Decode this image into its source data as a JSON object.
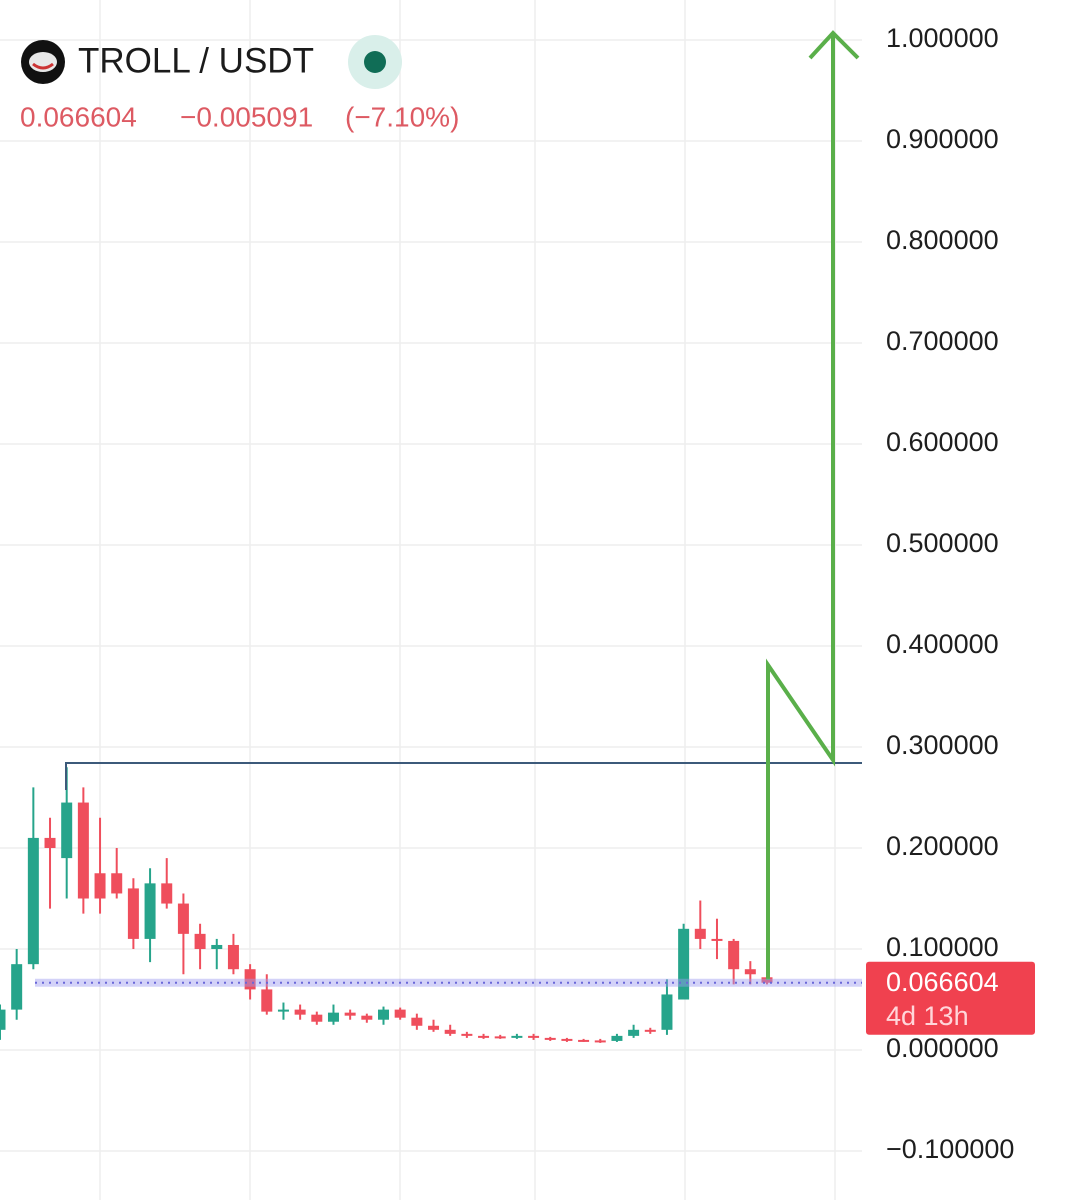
{
  "header": {
    "symbol": "TROLL / USDT",
    "price": "0.066604",
    "change": "−0.005091",
    "change_pct": "(−7.10%)"
  },
  "chart_data": {
    "type": "candlestick",
    "categories": [
      null,
      null,
      null,
      null,
      null,
      null,
      null,
      null,
      null,
      null,
      null,
      null,
      null,
      null,
      null,
      null,
      null,
      null,
      null,
      null,
      null,
      null,
      null,
      null,
      null,
      null,
      null,
      null,
      null,
      null,
      null,
      null,
      null,
      null,
      null,
      null,
      null,
      null,
      null,
      null,
      null,
      null,
      null,
      null,
      null,
      null,
      null
    ],
    "open": [
      0.02,
      0.04,
      0.085,
      0.21,
      0.19,
      0.245,
      0.175,
      0.175,
      0.16,
      0.11,
      0.165,
      0.145,
      0.115,
      0.1,
      0.104,
      0.08,
      0.06,
      0.038,
      0.04,
      0.035,
      0.028,
      0.037,
      0.034,
      0.03,
      0.04,
      0.032,
      0.024,
      0.02,
      0.016,
      0.014,
      0.0135,
      0.0125,
      0.014,
      0.012,
      0.011,
      0.01,
      0.0095,
      0.009,
      0.014,
      0.02,
      0.02,
      0.05,
      0.12,
      0.11,
      0.108,
      0.08,
      0.072
    ],
    "high": [
      0.045,
      0.1,
      0.26,
      0.23,
      0.28,
      0.26,
      0.23,
      0.2,
      0.17,
      0.18,
      0.19,
      0.155,
      0.125,
      0.11,
      0.115,
      0.085,
      0.075,
      0.047,
      0.045,
      0.038,
      0.045,
      0.04,
      0.036,
      0.043,
      0.042,
      0.036,
      0.03,
      0.025,
      0.018,
      0.016,
      0.015,
      0.016,
      0.016,
      0.013,
      0.012,
      0.011,
      0.011,
      0.016,
      0.025,
      0.022,
      0.07,
      0.125,
      0.148,
      0.13,
      0.11,
      0.088,
      0.075
    ],
    "low": [
      0.01,
      0.03,
      0.08,
      0.14,
      0.15,
      0.135,
      0.135,
      0.15,
      0.1,
      0.087,
      0.14,
      0.075,
      0.08,
      0.08,
      0.075,
      0.05,
      0.035,
      0.03,
      0.03,
      0.025,
      0.025,
      0.03,
      0.027,
      0.025,
      0.03,
      0.02,
      0.018,
      0.014,
      0.012,
      0.011,
      0.011,
      0.011,
      0.01,
      0.009,
      0.008,
      0.008,
      0.007,
      0.008,
      0.012,
      0.016,
      0.015,
      0.05,
      0.1,
      0.09,
      0.065,
      0.065,
      0.065
    ],
    "close": [
      0.04,
      0.085,
      0.21,
      0.2,
      0.245,
      0.15,
      0.15,
      0.155,
      0.11,
      0.165,
      0.145,
      0.115,
      0.1,
      0.104,
      0.08,
      0.06,
      0.038,
      0.04,
      0.035,
      0.028,
      0.037,
      0.034,
      0.03,
      0.04,
      0.032,
      0.024,
      0.02,
      0.016,
      0.014,
      0.013,
      0.0125,
      0.014,
      0.012,
      0.011,
      0.01,
      0.009,
      0.0088,
      0.014,
      0.02,
      0.018,
      0.055,
      0.12,
      0.11,
      0.108,
      0.08,
      0.075,
      0.066604
    ],
    "up_color": "#26a48b",
    "down_color": "#ef4e5c",
    "ylim": [
      -0.1485,
      1.0396
    ],
    "yticks": [
      {
        "value": -0.1,
        "label": "−0.100000"
      },
      {
        "value": 0,
        "label": "0.000000"
      },
      {
        "value": 0.1,
        "label": "0.100000"
      },
      {
        "value": 0.2,
        "label": "0.200000"
      },
      {
        "value": 0.3,
        "label": "0.300000"
      },
      {
        "value": 0.4,
        "label": "0.400000"
      },
      {
        "value": 0.5,
        "label": "0.500000"
      },
      {
        "value": 0.6,
        "label": "0.600000"
      },
      {
        "value": 0.7,
        "label": "0.700000"
      },
      {
        "value": 0.8,
        "label": "0.800000"
      },
      {
        "value": 0.9,
        "label": "0.900000"
      },
      {
        "value": 1,
        "label": "1.000000"
      }
    ],
    "grid": true,
    "price_tag": {
      "value": 0.066604,
      "countdown": "4d 13h",
      "color": "#f0414f",
      "line_color": "#9d9cf0"
    }
  }
}
